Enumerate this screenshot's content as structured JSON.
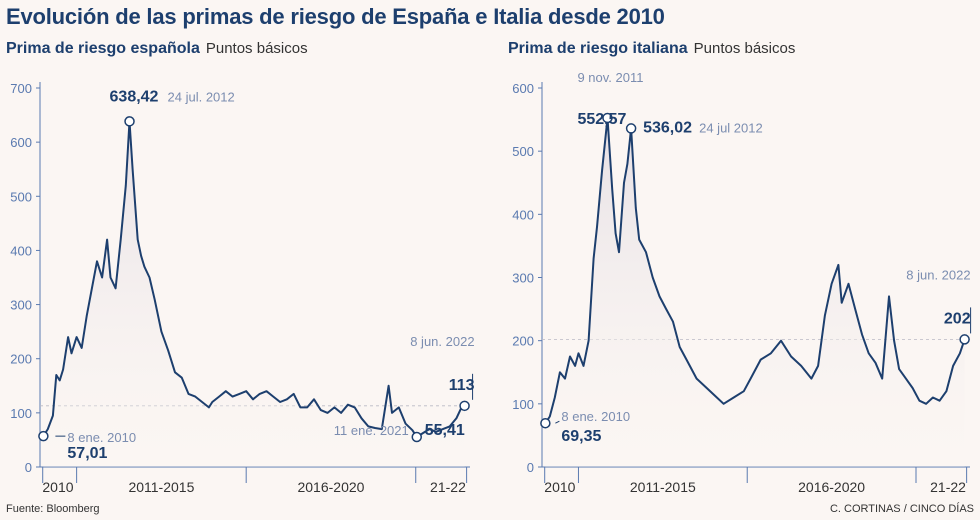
{
  "title": "Evolución de las primas de riesgo de España e Italia desde 2010",
  "source": "Fuente: Bloomberg",
  "credit": "C. CORTINAS / CINCO DÍAS",
  "colors": {
    "line": "#1d3f6e",
    "axis": "#5a7ab0",
    "text": "#1d3f6e",
    "muted": "#7b8db0",
    "background": "#fbf6f3",
    "fill": "#e6e0e5"
  },
  "chart_data": [
    {
      "type": "area",
      "title": "Prima de riesgo española",
      "unit": "Puntos básicos",
      "ylim": [
        0,
        700
      ],
      "yticks": [
        "0",
        "100",
        "200",
        "300",
        "400",
        "500",
        "600",
        "700"
      ],
      "xlim": [
        2009.92,
        2022.6
      ],
      "xticks": [
        2010,
        2011,
        2016,
        2021,
        2022.5
      ],
      "xgroups": [
        {
          "label": "2010",
          "at": 2010.45
        },
        {
          "label": "2011-2015",
          "at": 2013.5
        },
        {
          "label": "2016-2020",
          "at": 2018.5
        },
        {
          "label": "21-22",
          "at": 2021.95
        }
      ],
      "reference_value": 113,
      "series": [
        {
          "x": [
            2010.02,
            2010.15,
            2010.3,
            2010.4,
            2010.5,
            2010.6,
            2010.75,
            2010.85,
            2011.0,
            2011.15,
            2011.3,
            2011.45,
            2011.6,
            2011.75,
            2011.9,
            2012.0,
            2012.15,
            2012.3,
            2012.45,
            2012.56,
            2012.65,
            2012.8,
            2012.9,
            2013.0,
            2013.15,
            2013.3,
            2013.5,
            2013.7,
            2013.9,
            2014.1,
            2014.3,
            2014.5,
            2014.7,
            2014.9,
            2015.0,
            2015.2,
            2015.4,
            2015.6,
            2015.8,
            2016.0,
            2016.2,
            2016.4,
            2016.6,
            2016.8,
            2017.0,
            2017.2,
            2017.4,
            2017.6,
            2017.8,
            2018.0,
            2018.2,
            2018.4,
            2018.6,
            2018.8,
            2019.0,
            2019.2,
            2019.4,
            2019.6,
            2019.8,
            2020.0,
            2020.2,
            2020.3,
            2020.5,
            2020.7,
            2020.9,
            2021.03,
            2021.2,
            2021.4,
            2021.6,
            2021.8,
            2022.0,
            2022.2,
            2022.35,
            2022.44
          ],
          "values": [
            57.01,
            70,
            95,
            170,
            160,
            180,
            240,
            210,
            240,
            220,
            280,
            330,
            380,
            350,
            420,
            350,
            330,
            420,
            520,
            638.42,
            550,
            420,
            390,
            370,
            350,
            310,
            250,
            215,
            175,
            165,
            135,
            130,
            120,
            110,
            120,
            130,
            140,
            130,
            135,
            140,
            125,
            135,
            140,
            130,
            120,
            125,
            135,
            110,
            110,
            125,
            105,
            100,
            110,
            100,
            115,
            110,
            90,
            75,
            72,
            70,
            150,
            100,
            110,
            80,
            68,
            55.41,
            62,
            70,
            65,
            70,
            75,
            90,
            110,
            113
          ]
        }
      ],
      "annotations": [
        {
          "x": 2010.02,
          "value": 57.01,
          "value_label": "57,01",
          "date_label": "8 ene. 2010"
        },
        {
          "x": 2012.56,
          "value": 638.42,
          "value_label": "638,42",
          "date_label": "24 jul. 2012"
        },
        {
          "x": 2021.03,
          "value": 55.41,
          "value_label": "55,41",
          "date_label": "11 ene. 2021"
        },
        {
          "x": 2022.44,
          "value": 113,
          "value_label": "113",
          "date_label": "8 jun. 2022"
        }
      ]
    },
    {
      "type": "area",
      "title": "Prima de riesgo italiana",
      "unit": "Puntos básicos",
      "ylim": [
        0,
        600
      ],
      "yticks": [
        "0",
        "100",
        "200",
        "300",
        "400",
        "500",
        "600"
      ],
      "xlim": [
        2009.92,
        2022.6
      ],
      "xticks": [
        2010,
        2011,
        2016,
        2021,
        2022.5
      ],
      "xgroups": [
        {
          "label": "2010",
          "at": 2010.45
        },
        {
          "label": "2011-2015",
          "at": 2013.5
        },
        {
          "label": "2016-2020",
          "at": 2018.5
        },
        {
          "label": "21-22",
          "at": 2021.95
        }
      ],
      "reference_value": 202,
      "series": [
        {
          "x": [
            2010.02,
            2010.15,
            2010.3,
            2010.45,
            2010.6,
            2010.75,
            2010.9,
            2011.0,
            2011.15,
            2011.3,
            2011.45,
            2011.55,
            2011.7,
            2011.86,
            2012.0,
            2012.1,
            2012.2,
            2012.35,
            2012.45,
            2012.56,
            2012.7,
            2012.8,
            2013.0,
            2013.2,
            2013.4,
            2013.6,
            2013.8,
            2014.0,
            2014.2,
            2014.5,
            2014.8,
            2015.0,
            2015.3,
            2015.6,
            2015.9,
            2016.1,
            2016.4,
            2016.7,
            2017.0,
            2017.3,
            2017.6,
            2017.9,
            2018.1,
            2018.3,
            2018.5,
            2018.7,
            2018.8,
            2019.0,
            2019.2,
            2019.4,
            2019.6,
            2019.8,
            2020.0,
            2020.2,
            2020.35,
            2020.5,
            2020.7,
            2020.9,
            2021.1,
            2021.3,
            2021.5,
            2021.7,
            2021.9,
            2022.1,
            2022.3,
            2022.44
          ],
          "values": [
            69.35,
            80,
            110,
            150,
            140,
            175,
            160,
            180,
            160,
            200,
            330,
            380,
            470,
            552.57,
            440,
            370,
            340,
            450,
            480,
            536.02,
            410,
            360,
            340,
            300,
            270,
            250,
            230,
            190,
            170,
            140,
            125,
            115,
            100,
            110,
            120,
            140,
            170,
            180,
            200,
            175,
            160,
            140,
            160,
            240,
            290,
            320,
            260,
            290,
            250,
            210,
            180,
            165,
            140,
            270,
            200,
            155,
            140,
            125,
            105,
            100,
            110,
            105,
            120,
            160,
            180,
            202
          ]
        }
      ],
      "annotations": [
        {
          "x": 2010.02,
          "value": 69.35,
          "value_label": "69,35",
          "date_label": "8 ene. 2010"
        },
        {
          "x": 2011.86,
          "value": 552.57,
          "value_label": "552,57",
          "date_label": "9 nov. 2011"
        },
        {
          "x": 2012.56,
          "value": 536.02,
          "value_label": "536,02",
          "date_label": "24 jul 2012"
        },
        {
          "x": 2022.44,
          "value": 202,
          "value_label": "202",
          "date_label": "8 jun. 2022"
        }
      ]
    }
  ]
}
